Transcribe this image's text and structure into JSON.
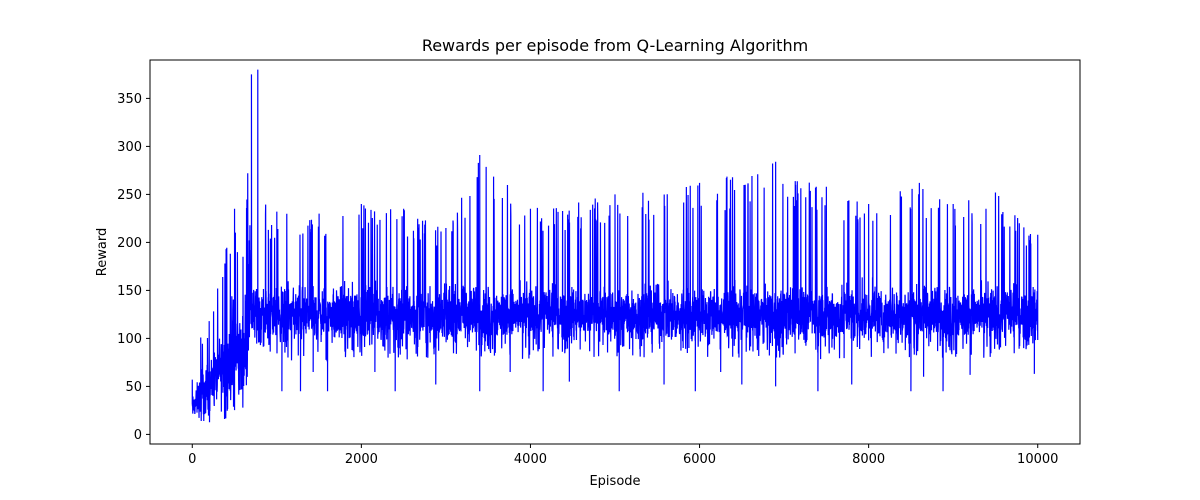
{
  "chart_data": {
    "type": "line",
    "title": "Rewards per episode from Q-Learning Algorithm",
    "xlabel": "Episode",
    "ylabel": "Reward",
    "xlim": [
      -500,
      10500
    ],
    "ylim": [
      -10,
      390
    ],
    "xticks": [
      0,
      2000,
      4000,
      6000,
      8000,
      10000
    ],
    "yticks": [
      0,
      50,
      100,
      150,
      200,
      250,
      300,
      350
    ],
    "xtick_labels": [
      "0",
      "2000",
      "4000",
      "6000",
      "8000",
      "10000"
    ],
    "ytick_labels": [
      "0",
      "50",
      "100",
      "150",
      "200",
      "250",
      "300",
      "350"
    ],
    "grid": false,
    "series": [
      {
        "color": "#0000ff",
        "x_range": [
          0,
          10000
        ],
        "summary": [
          {
            "x": 0,
            "min": 10,
            "max": 57
          },
          {
            "x": 100,
            "min": 10,
            "max": 101
          },
          {
            "x": 200,
            "min": 12,
            "max": 118
          },
          {
            "x": 300,
            "min": 15,
            "max": 152
          },
          {
            "x": 400,
            "min": 10,
            "max": 193
          },
          {
            "x": 500,
            "min": 10,
            "max": 235
          },
          {
            "x": 600,
            "min": 20,
            "max": 185
          },
          {
            "x": 700,
            "min": 60,
            "max": 375
          },
          {
            "x": 775,
            "min": 85,
            "max": 380
          },
          {
            "x": 900,
            "min": 80,
            "max": 213
          },
          {
            "x": 1000,
            "min": 78,
            "max": 232
          },
          {
            "x": 1500,
            "min": 75,
            "max": 230
          },
          {
            "x": 2000,
            "min": 80,
            "max": 240
          },
          {
            "x": 2500,
            "min": 78,
            "max": 235
          },
          {
            "x": 3000,
            "min": 75,
            "max": 215
          },
          {
            "x": 3400,
            "min": 80,
            "max": 291
          },
          {
            "x": 4000,
            "min": 78,
            "max": 235
          },
          {
            "x": 5000,
            "min": 80,
            "max": 250
          },
          {
            "x": 6000,
            "min": 80,
            "max": 262
          },
          {
            "x": 6900,
            "min": 80,
            "max": 284
          },
          {
            "x": 7500,
            "min": 78,
            "max": 258
          },
          {
            "x": 8000,
            "min": 80,
            "max": 240
          },
          {
            "x": 8600,
            "min": 80,
            "max": 262
          },
          {
            "x": 9000,
            "min": 78,
            "max": 240
          },
          {
            "x": 9500,
            "min": 80,
            "max": 252
          },
          {
            "x": 10000,
            "min": 85,
            "max": 208
          }
        ],
        "dips": [
          {
            "x": 1060,
            "y": 45
          },
          {
            "x": 1280,
            "y": 45
          },
          {
            "x": 1430,
            "y": 65
          },
          {
            "x": 1600,
            "y": 45
          },
          {
            "x": 2160,
            "y": 65
          },
          {
            "x": 2400,
            "y": 45
          },
          {
            "x": 2880,
            "y": 52
          },
          {
            "x": 3400,
            "y": 45
          },
          {
            "x": 3760,
            "y": 65
          },
          {
            "x": 4150,
            "y": 45
          },
          {
            "x": 4460,
            "y": 55
          },
          {
            "x": 5050,
            "y": 45
          },
          {
            "x": 5580,
            "y": 52
          },
          {
            "x": 5950,
            "y": 45
          },
          {
            "x": 6250,
            "y": 65
          },
          {
            "x": 6500,
            "y": 52
          },
          {
            "x": 6900,
            "y": 50
          },
          {
            "x": 7400,
            "y": 45
          },
          {
            "x": 7800,
            "y": 52
          },
          {
            "x": 8500,
            "y": 45
          },
          {
            "x": 8650,
            "y": 60
          },
          {
            "x": 8880,
            "y": 45
          },
          {
            "x": 9200,
            "y": 62
          },
          {
            "x": 9960,
            "y": 63
          }
        ]
      }
    ]
  }
}
